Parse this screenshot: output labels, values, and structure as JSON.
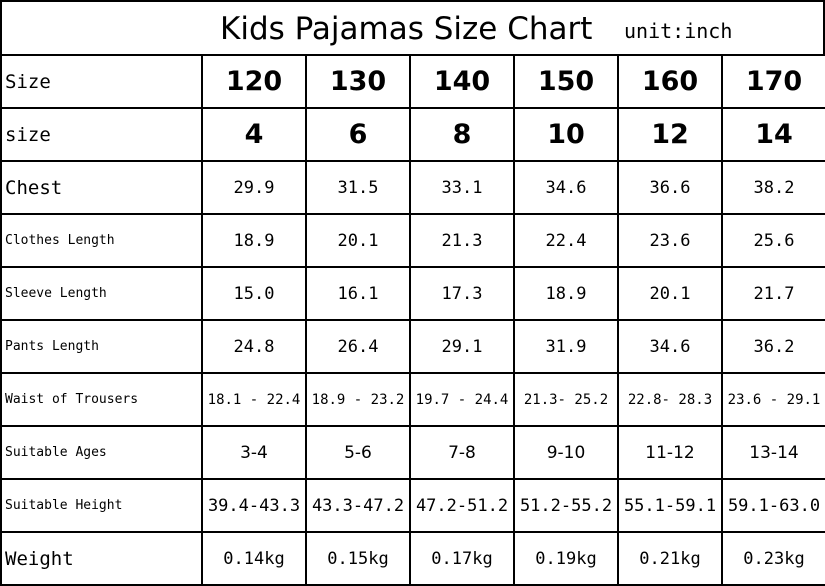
{
  "title": "Kids Pajamas Size Chart",
  "unit": "unit:inch",
  "rows": [
    {
      "label": "Size",
      "values": [
        "120",
        "130",
        "140",
        "150",
        "160",
        "170"
      ]
    },
    {
      "label": "size",
      "values": [
        "4",
        "6",
        "8",
        "10",
        "12",
        "14"
      ]
    },
    {
      "label": "Chest",
      "values": [
        "29.9",
        "31.5",
        "33.1",
        "34.6",
        "36.6",
        "38.2"
      ]
    },
    {
      "label": "Clothes Length",
      "values": [
        "18.9",
        "20.1",
        "21.3",
        "22.4",
        "23.6",
        "25.6"
      ]
    },
    {
      "label": "Sleeve Length",
      "values": [
        "15.0",
        "16.1",
        "17.3",
        "18.9",
        "20.1",
        "21.7"
      ]
    },
    {
      "label": "Pants Length",
      "values": [
        "24.8",
        "26.4",
        "29.1",
        "31.9",
        "34.6",
        "36.2"
      ]
    },
    {
      "label": "Waist of Trousers",
      "values": [
        "18.1 - 22.4",
        "18.9 - 23.2",
        "19.7 - 24.4",
        "21.3- 25.2",
        "22.8- 28.3",
        "23.6 - 29.1"
      ]
    },
    {
      "label": "Suitable Ages",
      "values": [
        "3-4",
        "5-6",
        "7-8",
        "9-10",
        "11-12",
        "13-14"
      ]
    },
    {
      "label": "Suitable Height",
      "values": [
        "39.4-43.3",
        "43.3-47.2",
        "47.2-51.2",
        "51.2-55.2",
        "55.1-59.1",
        "59.1-63.0"
      ]
    },
    {
      "label": "Weight",
      "values": [
        "0.14kg",
        "0.15kg",
        "0.17kg",
        "0.19kg",
        "0.21kg",
        "0.23kg"
      ]
    }
  ]
}
